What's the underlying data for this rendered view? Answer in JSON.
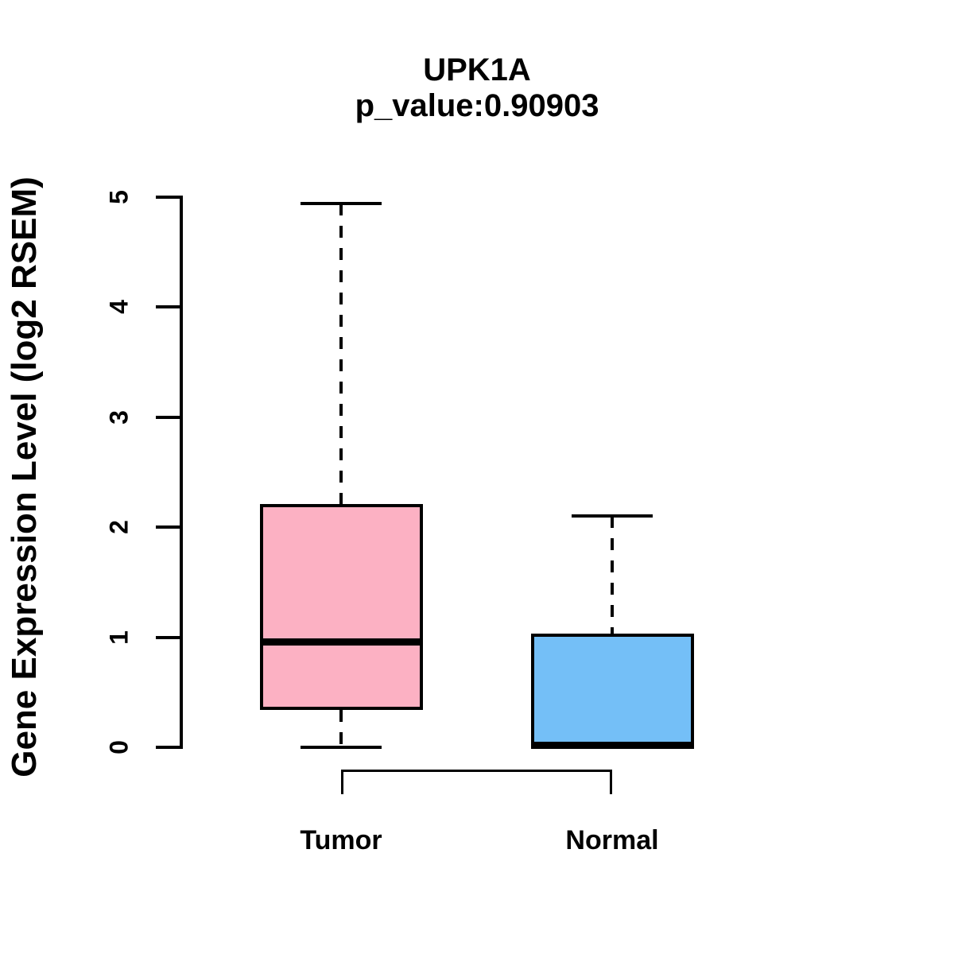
{
  "chart_data": {
    "type": "boxplot",
    "title": "UPK1A",
    "subtitle": "p_value:0.90903",
    "p_value": "0.90903",
    "ylabel": "Gene Expression Level (log2 RSEM)",
    "xlabel": "",
    "categories": [
      "Tumor",
      "Normal"
    ],
    "yticks": [
      0,
      1,
      2,
      3,
      4,
      5
    ],
    "ylim": [
      0,
      5
    ],
    "grid": false,
    "legend": "none",
    "series": [
      {
        "name": "Tumor",
        "color": "#FCB1C3",
        "whisker_low": 0.0,
        "q1": 0.34,
        "median": 0.96,
        "q3": 2.21,
        "whisker_high": 4.94,
        "whisker_style": "dashed"
      },
      {
        "name": "Normal",
        "color": "#74BFF7",
        "whisker_low": 0.0,
        "q1": 0.0,
        "median": 0.02,
        "q3": 1.03,
        "whisker_high": 2.1,
        "whisker_style": "dashed"
      }
    ],
    "comparison_bracket": {
      "from": "Tumor",
      "to": "Normal"
    }
  },
  "colors": {
    "background": "#FFFFFF",
    "line": "#000000",
    "tumor_fill": "#FCB1C3",
    "normal_fill": "#74BFF7"
  }
}
